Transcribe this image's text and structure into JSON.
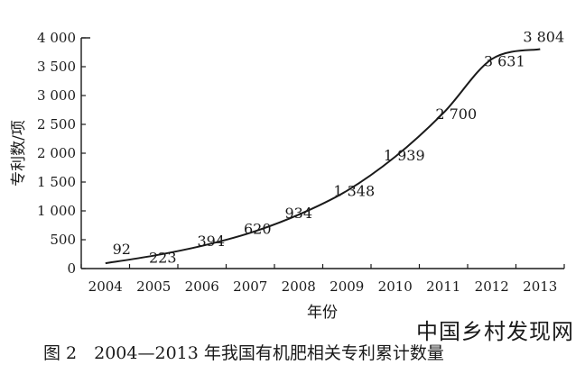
{
  "chart_data": {
    "type": "line",
    "x": [
      "2004",
      "2005",
      "2006",
      "2007",
      "2008",
      "2009",
      "2010",
      "2011",
      "2012",
      "2013"
    ],
    "series": [
      {
        "values": [
          92,
          223,
          394,
          620,
          934,
          1348,
          1939,
          2700,
          3631,
          3804
        ]
      }
    ],
    "data_labels": [
      "92",
      "223",
      "394",
      "620",
      "934",
      "1 348",
      "1 939",
      "2 700",
      "3 631",
      "3 804"
    ],
    "y_ticks": [
      {
        "value": 0,
        "label": "0"
      },
      {
        "value": 500,
        "label": "500"
      },
      {
        "value": 1000,
        "label": "1 000"
      },
      {
        "value": 1500,
        "label": "1 500"
      },
      {
        "value": 2000,
        "label": "2 000"
      },
      {
        "value": 2500,
        "label": "2 500"
      },
      {
        "value": 3000,
        "label": "3 000"
      },
      {
        "value": 3500,
        "label": "3 500"
      },
      {
        "value": 4000,
        "label": "4 000"
      }
    ],
    "ylim": [
      0,
      4000
    ],
    "xlabel": "年份",
    "ylabel": "专利数/项",
    "grid": false,
    "legend": "none"
  },
  "caption": "图 2　2004—2013 年我国有机肥相关专利累计数量",
  "watermark": "中国乡村发现网"
}
